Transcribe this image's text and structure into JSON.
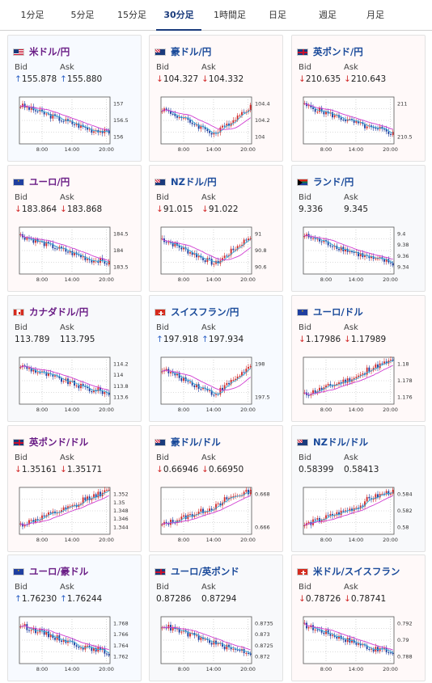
{
  "tabs": [
    {
      "label": "1分足",
      "active": false
    },
    {
      "label": "5分足",
      "active": false
    },
    {
      "label": "15分足",
      "active": false
    },
    {
      "label": "30分足",
      "active": true
    },
    {
      "label": "1時間足",
      "active": false
    },
    {
      "label": "日足",
      "active": false
    },
    {
      "label": "週足",
      "active": false
    },
    {
      "label": "月足",
      "active": false
    }
  ],
  "labels": {
    "bid": "Bid",
    "ask": "Ask"
  },
  "colors": {
    "up": "#2a5fc4",
    "down": "#d12b2b",
    "ma_magenta": "#d03ad0",
    "ma_cyan": "#3aaed8",
    "active_tab": "#1a3b7c"
  },
  "cards": [
    {
      "pair": "米ドル/円",
      "flag": "us-flag-icon",
      "dir": "up",
      "arrow": "↑",
      "bid": "155.878",
      "ask": "155.880",
      "chart_data": {
        "type": "line",
        "x_ticks": [
          "8:00",
          "14:00",
          "20:00"
        ],
        "y_ticks": [
          "157",
          "156.5",
          "156"
        ],
        "trend": "down"
      }
    },
    {
      "pair": "豪ドル/円",
      "flag": "au-flag-icon",
      "dir": "down",
      "arrow": "↓",
      "bid": "104.327",
      "ask": "104.332",
      "chart_data": {
        "type": "line",
        "x_ticks": [
          "8:00",
          "14:00",
          "20:00"
        ],
        "y_ticks": [
          "104.4",
          "104.2",
          "104"
        ],
        "trend": "v"
      }
    },
    {
      "pair": "英ポンド/円",
      "flag": "gb-flag-icon",
      "dir": "down",
      "arrow": "↓",
      "bid": "210.635",
      "ask": "210.643",
      "chart_data": {
        "type": "line",
        "x_ticks": [
          "8:00",
          "14:00",
          "20:00"
        ],
        "y_ticks": [
          "211",
          "210.5"
        ],
        "trend": "down"
      }
    },
    {
      "pair": "ユーロ/円",
      "flag": "eu-flag-icon",
      "dir": "down",
      "arrow": "↓",
      "bid": "183.864",
      "ask": "183.868",
      "chart_data": {
        "type": "line",
        "x_ticks": [
          "8:00",
          "14:00",
          "20:00"
        ],
        "y_ticks": [
          "184.5",
          "184",
          "183.5"
        ],
        "trend": "down"
      }
    },
    {
      "pair": "NZドル/円",
      "flag": "nz-flag-icon",
      "dir": "down",
      "arrow": "↓",
      "bid": "91.015",
      "ask": "91.022",
      "chart_data": {
        "type": "line",
        "x_ticks": [
          "8:00",
          "14:00",
          "20:00"
        ],
        "y_ticks": [
          "91",
          "90.8",
          "90.6"
        ],
        "trend": "v"
      }
    },
    {
      "pair": "ランド/円",
      "flag": "za-flag-icon",
      "dir": "flat",
      "arrow": "",
      "bid": "9.336",
      "ask": "9.345",
      "chart_data": {
        "type": "line",
        "x_ticks": [
          "8:00",
          "14:00",
          "20:00"
        ],
        "y_ticks": [
          "9.4",
          "9.38",
          "9.36",
          "9.34"
        ],
        "trend": "down"
      }
    },
    {
      "pair": "カナダドル/円",
      "flag": "ca-flag-icon",
      "dir": "flat",
      "arrow": "",
      "bid": "113.789",
      "ask": "113.795",
      "chart_data": {
        "type": "line",
        "x_ticks": [
          "8:00",
          "14:00",
          "20:00"
        ],
        "y_ticks": [
          "114.2",
          "114",
          "113.8",
          "113.6"
        ],
        "trend": "down"
      }
    },
    {
      "pair": "スイスフラン/円",
      "flag": "ch-flag-icon",
      "dir": "up",
      "arrow": "↑",
      "bid": "197.918",
      "ask": "197.934",
      "chart_data": {
        "type": "line",
        "x_ticks": [
          "8:00",
          "14:00",
          "20:00"
        ],
        "y_ticks": [
          "198",
          "197.5"
        ],
        "trend": "v"
      }
    },
    {
      "pair": "ユーロ/ドル",
      "flag": "eu-flag-icon",
      "dir": "down",
      "arrow": "↓",
      "bid": "1.17986",
      "ask": "1.17989",
      "chart_data": {
        "type": "line",
        "x_ticks": [
          "8:00",
          "14:00",
          "20:00"
        ],
        "y_ticks": [
          "1.18",
          "1.178",
          "1.176"
        ],
        "trend": "up"
      }
    },
    {
      "pair": "英ポンド/ドル",
      "flag": "gb-flag-icon",
      "dir": "down",
      "arrow": "↓",
      "bid": "1.35161",
      "ask": "1.35171",
      "chart_data": {
        "type": "line",
        "x_ticks": [
          "8:00",
          "14:00",
          "20:00"
        ],
        "y_ticks": [
          "1.352",
          "1.35",
          "1.348",
          "1.346",
          "1.344"
        ],
        "trend": "up"
      }
    },
    {
      "pair": "豪ドル/ドル",
      "flag": "au-flag-icon",
      "dir": "down",
      "arrow": "↓",
      "bid": "0.66946",
      "ask": "0.66950",
      "chart_data": {
        "type": "line",
        "x_ticks": [
          "8:00",
          "14:00",
          "20:00"
        ],
        "y_ticks": [
          "0.668",
          "0.666"
        ],
        "trend": "up"
      }
    },
    {
      "pair": "NZドル/ドル",
      "flag": "nz-flag-icon",
      "dir": "flat",
      "arrow": "",
      "bid": "0.58399",
      "ask": "0.58413",
      "chart_data": {
        "type": "line",
        "x_ticks": [
          "8:00",
          "14:00",
          "20:00"
        ],
        "y_ticks": [
          "0.584",
          "0.582",
          "0.58"
        ],
        "trend": "up"
      }
    },
    {
      "pair": "ユーロ/豪ドル",
      "flag": "eu-flag-icon",
      "dir": "up",
      "arrow": "↑",
      "bid": "1.76230",
      "ask": "1.76244",
      "chart_data": {
        "type": "line",
        "x_ticks": [
          "8:00",
          "14:00",
          "20:00"
        ],
        "y_ticks": [
          "1.768",
          "1.766",
          "1.764",
          "1.762"
        ],
        "trend": "down"
      }
    },
    {
      "pair": "ユーロ/英ポンド",
      "flag": "gb-flag-icon",
      "dir": "flat",
      "arrow": "",
      "bid": "0.87286",
      "ask": "0.87294",
      "chart_data": {
        "type": "line",
        "x_ticks": [
          "8:00",
          "14:00",
          "20:00"
        ],
        "y_ticks": [
          "0.8735",
          "0.873",
          "0.8725",
          "0.872"
        ],
        "trend": "down"
      }
    },
    {
      "pair": "米ドル/スイスフラン",
      "flag": "ch-flag-icon",
      "dir": "down",
      "arrow": "↓",
      "bid": "0.78726",
      "ask": "0.78741",
      "chart_data": {
        "type": "line",
        "x_ticks": [
          "8:00",
          "14:00",
          "20:00"
        ],
        "y_ticks": [
          "0.792",
          "0.79",
          "0.788"
        ],
        "trend": "down"
      }
    }
  ]
}
